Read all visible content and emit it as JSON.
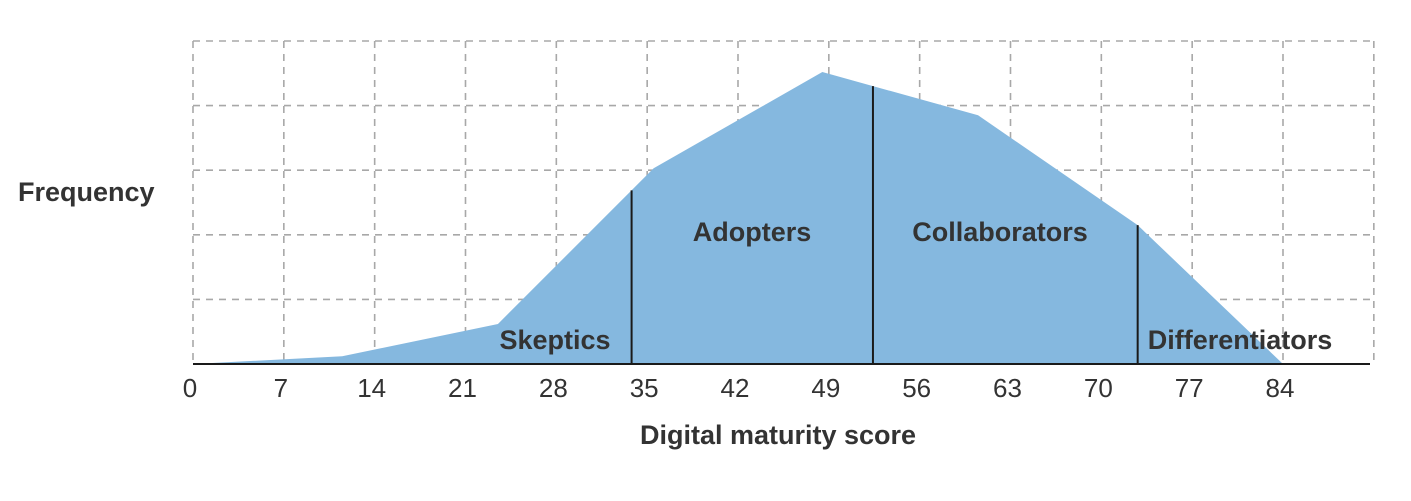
{
  "chart_data": {
    "type": "area",
    "title": "",
    "xlabel": "Digital maturity score",
    "ylabel": "Frequency",
    "xlim": [
      0,
      94
    ],
    "ylim": [
      0,
      5
    ],
    "grid": true,
    "x_ticks": [
      0,
      7,
      14,
      21,
      28,
      35,
      42,
      49,
      56,
      63,
      70,
      77,
      84
    ],
    "x_tick_labels": [
      "0",
      "7",
      "14",
      "21",
      "28",
      "35",
      "42",
      "49",
      "56",
      "63",
      "70",
      "77",
      "84"
    ],
    "y_gridlines": [
      1,
      2,
      3,
      4,
      5
    ],
    "x_gridlines": [
      0,
      7,
      14,
      21,
      28,
      35,
      42,
      49,
      56,
      63,
      70,
      77,
      84
    ],
    "series": [
      {
        "color": "#85b8df",
        "x": [
          0,
          11.5,
          23.5,
          35.5,
          48.5,
          60.5,
          72.8,
          84
        ],
        "y": [
          0,
          0.12,
          0.62,
          3.03,
          4.52,
          3.85,
          2.15,
          0
        ]
      }
    ],
    "segments": [
      {
        "label": "Skeptics",
        "x_end": 33.8
      },
      {
        "label": "Adopters",
        "x_start": 33.8,
        "x_end": 52.4
      },
      {
        "label": "Collaborators",
        "x_start": 52.4,
        "x_end": 72.8
      },
      {
        "label": "Differentiators",
        "x_start": 72.8
      }
    ],
    "dividers_x": [
      33.8,
      52.4,
      72.8
    ]
  }
}
